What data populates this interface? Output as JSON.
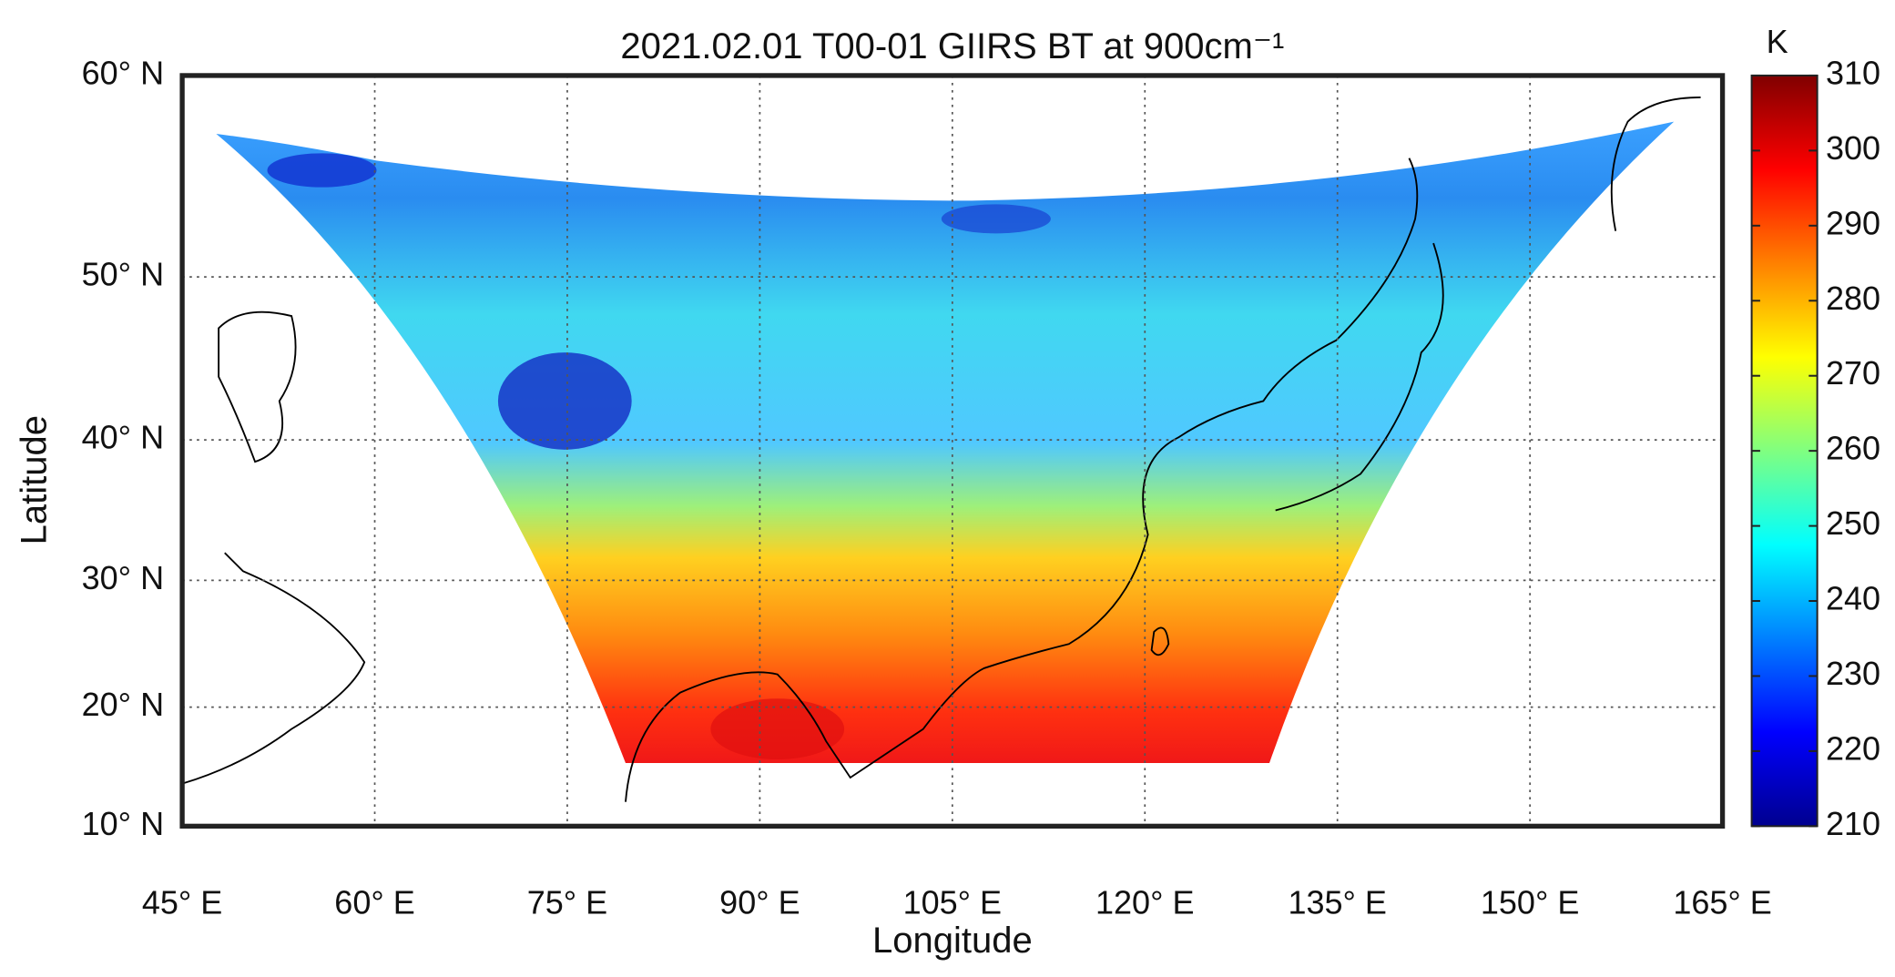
{
  "chart_data": {
    "type": "map",
    "title": "2021.02.01 T00-01 GIIRS BT at 900cm⁻¹",
    "xlabel": "Longitude",
    "ylabel": "Latitude",
    "xlim": [
      45,
      165
    ],
    "xticks": [
      {
        "value": 45,
        "label": "45° E"
      },
      {
        "value": 60,
        "label": "60° E"
      },
      {
        "value": 75,
        "label": "75° E"
      },
      {
        "value": 90,
        "label": "90° E"
      },
      {
        "value": 105,
        "label": "105° E"
      },
      {
        "value": 120,
        "label": "120° E"
      },
      {
        "value": 135,
        "label": "135° E"
      },
      {
        "value": 150,
        "label": "150° E"
      },
      {
        "value": 165,
        "label": "165° E"
      }
    ],
    "ylim": [
      10,
      60
    ],
    "yticks": [
      {
        "value": 10,
        "label": "10° N"
      },
      {
        "value": 20,
        "label": "20° N"
      },
      {
        "value": 30,
        "label": "30° N"
      },
      {
        "value": 40,
        "label": "40° N"
      },
      {
        "value": 50,
        "label": "50° N"
      },
      {
        "value": 60,
        "label": "60° N"
      }
    ],
    "grid": true,
    "colorbar": {
      "label": "K",
      "lim": [
        210,
        310
      ],
      "ticks": [
        210,
        220,
        230,
        240,
        250,
        260,
        270,
        280,
        290,
        300,
        310
      ],
      "colormap": "jet"
    }
  }
}
